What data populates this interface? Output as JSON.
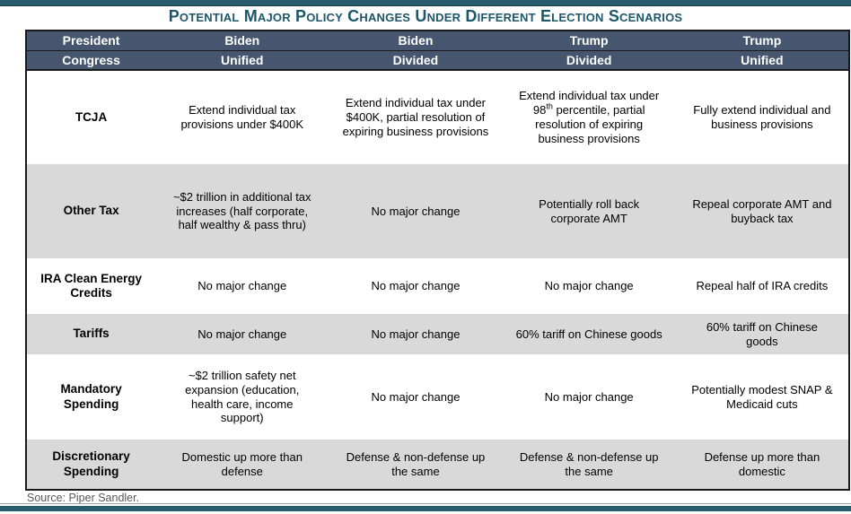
{
  "colors": {
    "accent_teal": "#2a5b6c",
    "title_text": "#1d5769",
    "header_bg": "#46566f",
    "header_text": "#ffffff",
    "stripe_gray": "#d9d9d9",
    "stripe_white": "#ffffff",
    "source_text": "#595959",
    "table_border": "#1a1a1a"
  },
  "chart_data": {
    "type": "table",
    "title": "Potential Major Policy Changes Under Different Election Scenarios",
    "header_rows": [
      {
        "label": "President",
        "cells": [
          "Biden",
          "Biden",
          "Trump",
          "Trump"
        ]
      },
      {
        "label": "Congress",
        "cells": [
          "Unified",
          "Divided",
          "Divided",
          "Unified"
        ]
      }
    ],
    "rows": [
      {
        "label": "TCJA",
        "cells": [
          "Extend individual tax provisions under $400K",
          "Extend individual tax under $400K, partial resolution of expiring business provisions",
          "Extend individual tax under 98th percentile, partial resolution of expiring business provisions",
          "Fully extend individual and business provisions"
        ]
      },
      {
        "label": "Other Tax",
        "cells": [
          "~$2 trillion in additional tax increases (half corporate, half wealthy & pass thru)",
          "No major change",
          "Potentially roll back corporate AMT",
          "Repeal corporate AMT and buyback tax"
        ]
      },
      {
        "label": "IRA Clean Energy Credits",
        "cells": [
          "No major change",
          "No major change",
          "No major change",
          "Repeal half of IRA credits"
        ]
      },
      {
        "label": "Tariffs",
        "cells": [
          "No major change",
          "No major change",
          "60% tariff on Chinese goods",
          "60% tariff on Chinese goods"
        ]
      },
      {
        "label": "Mandatory Spending",
        "cells": [
          "~$2 trillion safety net expansion (education, health care, income support)",
          "No major change",
          "No major change",
          "Potentially modest SNAP & Medicaid cuts"
        ]
      },
      {
        "label": "Discretionary Spending",
        "cells": [
          "Domestic up more than defense",
          "Defense & non-defense up the same",
          "Defense & non-defense up the same",
          "Defense up more than domestic"
        ]
      }
    ],
    "source": "Source: Piper Sandler."
  }
}
